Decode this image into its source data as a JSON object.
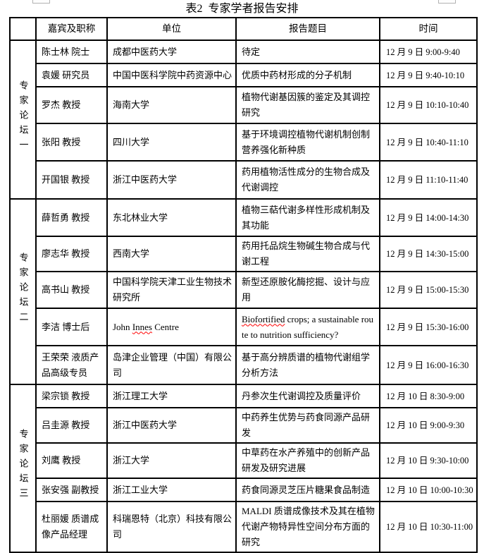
{
  "page": {
    "title": "表2  专家学者报告安排"
  },
  "table": {
    "headers": {
      "forum": "",
      "guest": "嘉宾及职称",
      "org": "单位",
      "topic": "报告题目",
      "time": "时间"
    },
    "spellcheck_flags": [
      "Innes",
      "Biofortified"
    ],
    "sections": [
      {
        "forum": "专家论坛一",
        "rows": [
          {
            "guest": "陈士林 院士",
            "org": "成都中医药大学",
            "topic": "待定",
            "time": "12 月 9 日 9:00-9:40"
          },
          {
            "guest": "袁媛 研究员",
            "org": "中国中医科学院中药资源中心",
            "topic": "优质中药材形成的分子机制",
            "time": "12 月 9 日 9:40-10:10"
          },
          {
            "guest": "罗杰 教授",
            "org": "海南大学",
            "topic": "植物代谢基因簇的鉴定及其调控研究",
            "time": "12 月 9 日 10:10-10:40"
          },
          {
            "guest": "张阳 教授",
            "org": "四川大学",
            "topic": "基于环境调控植物代谢机制创制营养强化新种质",
            "time": "12 月 9 日 10:40-11:10"
          },
          {
            "guest": "开国银 教授",
            "org": "浙江中医药大学",
            "topic": "药用植物活性成分的生物合成及代谢调控",
            "time": "12 月 9 日 11:10-11:40"
          }
        ]
      },
      {
        "forum": "专家论坛二",
        "rows": [
          {
            "guest": "薛哲勇 教授",
            "org": "东北林业大学",
            "topic": "植物三萜代谢多样性形成机制及其功能",
            "time": "12 月 9 日 14:00-14:30"
          },
          {
            "guest": "廖志华 教授",
            "org": "西南大学",
            "topic": "药用托品烷生物碱生物合成与代谢工程",
            "time": "12 月 9 日 14:30-15:00"
          },
          {
            "guest": "高书山 教授",
            "org": "中国科学院天津工业生物技术研究所",
            "topic": "新型还原胺化酶挖掘、设计与应用",
            "time": "12 月 9 日 15:00-15:30"
          },
          {
            "guest": "李洁 博士后",
            "org": "John Innes Centre",
            "topic": "Biofortified crops; a sustainable route to nutrition sufficiency?",
            "time": "12 月 9 日 15:30-16:00"
          },
          {
            "guest": "王荣荣 液质产品高级专员",
            "org": "岛津企业管理（中国）有限公司",
            "topic": "基于高分辨质谱的植物代谢组学分析方法",
            "time": "12 月 9 日 16:00-16:30"
          }
        ]
      },
      {
        "forum": "专家论坛三",
        "rows": [
          {
            "guest": "梁宗锁 教授",
            "org": "浙江理工大学",
            "topic": "丹参次生代谢调控及质量评价",
            "time": "12 月 10 日 8:30-9:00"
          },
          {
            "guest": "吕圭源 教授",
            "org": "浙江中医药大学",
            "topic": "中药养生优势与药食同源产品研发",
            "time": "12 月 10 日 9:00-9:30"
          },
          {
            "guest": "刘鹰 教授",
            "org": "浙江大学",
            "topic": "中草药在水产养殖中的创新产品研发及研究进展",
            "time": "12 月 10 日 9:30-10:00"
          },
          {
            "guest": "张安强 副教授",
            "org": "浙江工业大学",
            "topic": "药食同源灵芝压片糖果食品制造",
            "time": "12 月 10 日 10:00-10:30"
          },
          {
            "guest": "杜丽媛 质谱成像产品经理",
            "org": "科瑞恩特（北京）科技有限公司",
            "topic": "MALDI 质谱成像技术及其在植物代谢产物特异性空间分布方面的研究",
            "time": "12 月 10 日 10:30-11:00"
          }
        ]
      }
    ]
  }
}
